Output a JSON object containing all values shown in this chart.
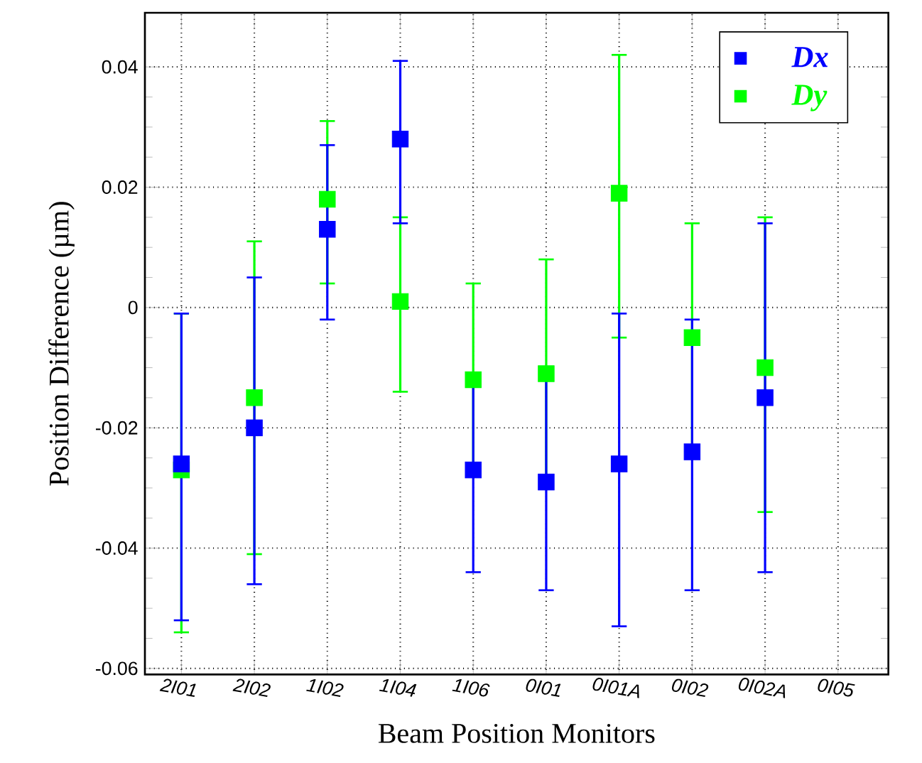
{
  "chart_data": {
    "type": "scatter",
    "xlabel": "Beam Position Monitors",
    "ylabel": "Position Difference (µm)",
    "categories": [
      "2I01",
      "2I02",
      "1I02",
      "1I04",
      "1I06",
      "0I01",
      "0I01A",
      "0I02",
      "0I02A",
      "0I05"
    ],
    "series": [
      {
        "name": "Dx",
        "color": "#0000ff",
        "values": [
          -0.026,
          -0.02,
          0.013,
          0.028,
          -0.027,
          -0.029,
          -0.026,
          -0.024,
          -0.015,
          null
        ],
        "errors": [
          [
            -0.052,
            -0.001
          ],
          [
            -0.046,
            0.005
          ],
          [
            -0.002,
            0.027
          ],
          [
            0.014,
            0.041
          ],
          [
            -0.044,
            -0.011
          ],
          [
            -0.047,
            -0.012
          ],
          [
            -0.053,
            -0.001
          ],
          [
            -0.047,
            -0.002
          ],
          [
            -0.044,
            0.014
          ],
          null
        ]
      },
      {
        "name": "Dy",
        "color": "#00ff00",
        "values": [
          -0.027,
          -0.015,
          0.018,
          0.001,
          -0.012,
          -0.011,
          0.019,
          -0.005,
          -0.01,
          null
        ],
        "errors": [
          [
            -0.054,
            -0.001
          ],
          [
            -0.041,
            0.011
          ],
          [
            0.004,
            0.031
          ],
          [
            -0.014,
            0.015
          ],
          [
            -0.028,
            0.004
          ],
          0.019,
          [
            -0.005,
            0.042
          ],
          0.019,
          [
            -0.034,
            0.015
          ],
          null
        ]
      }
    ],
    "ylim": [
      -0.061,
      0.049
    ],
    "yticks": [
      -0.06,
      -0.04,
      -0.02,
      0,
      0.02,
      0.04
    ],
    "grid": true,
    "legend": "top right",
    "marker": "square"
  }
}
